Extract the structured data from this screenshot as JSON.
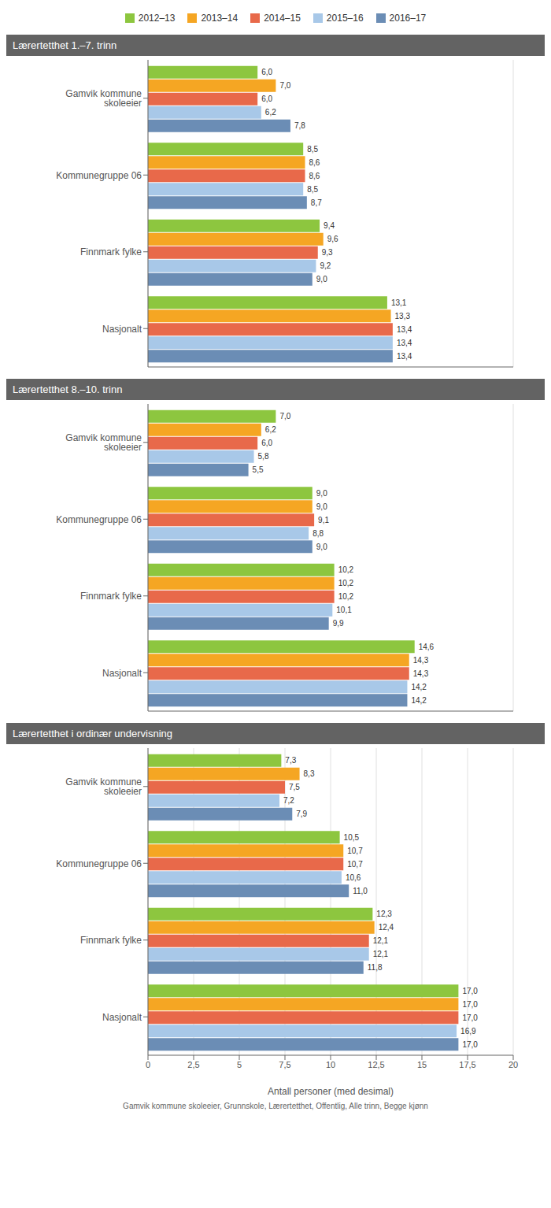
{
  "chart_data": [
    {
      "type": "bar",
      "orientation": "horizontal",
      "title": "Lærertetthet 1.–7. trinn",
      "legend": "top",
      "grid": true,
      "data_labels": true,
      "tick_labels": "y",
      "categories": [
        "Gamvik kommune skoleeier",
        "Kommunegruppe 06",
        "Finnmark fylke",
        "Nasjonalt"
      ],
      "series": [
        {
          "name": "2012–13",
          "color": "#8dc63f",
          "values": [
            6.0,
            8.5,
            9.4,
            13.1
          ],
          "value_labels": [
            "6,0",
            "8,5",
            "9,4",
            "13,1"
          ]
        },
        {
          "name": "2013–14",
          "color": "#f5a623",
          "values": [
            7.0,
            8.6,
            9.6,
            13.3
          ],
          "value_labels": [
            "7,0",
            "8,6",
            "9,6",
            "13,3"
          ]
        },
        {
          "name": "2014–15",
          "color": "#e8694a",
          "values": [
            6.0,
            8.6,
            9.3,
            13.4
          ],
          "value_labels": [
            "6,0",
            "8,6",
            "9,3",
            "13,4"
          ]
        },
        {
          "name": "2015–16",
          "color": "#a8c8e8",
          "values": [
            6.2,
            8.5,
            9.2,
            13.4
          ],
          "value_labels": [
            "6,2",
            "8,5",
            "9,2",
            "13,4"
          ]
        },
        {
          "name": "2016–17",
          "color": "#6b8db5",
          "values": [
            7.8,
            8.7,
            9.0,
            13.4
          ],
          "value_labels": [
            "7,8",
            "8,7",
            "9,0",
            "13,4"
          ]
        }
      ],
      "xlim": [
        0,
        20
      ],
      "xticks": [
        0,
        2.5,
        5,
        7.5,
        10,
        12.5,
        15,
        17.5,
        20
      ]
    },
    {
      "type": "bar",
      "orientation": "horizontal",
      "title": "Lærertetthet 8.–10. trinn",
      "grid": true,
      "data_labels": true,
      "tick_labels": "y",
      "categories": [
        "Gamvik kommune skoleeier",
        "Kommunegruppe 06",
        "Finnmark fylke",
        "Nasjonalt"
      ],
      "series": [
        {
          "name": "2012–13",
          "color": "#8dc63f",
          "values": [
            7.0,
            9.0,
            10.2,
            14.6
          ],
          "value_labels": [
            "7,0",
            "9,0",
            "10,2",
            "14,6"
          ]
        },
        {
          "name": "2013–14",
          "color": "#f5a623",
          "values": [
            6.2,
            9.0,
            10.2,
            14.3
          ],
          "value_labels": [
            "6,2",
            "9,0",
            "10,2",
            "14,3"
          ]
        },
        {
          "name": "2014–15",
          "color": "#e8694a",
          "values": [
            6.0,
            9.1,
            10.2,
            14.3
          ],
          "value_labels": [
            "6,0",
            "9,1",
            "10,2",
            "14,3"
          ]
        },
        {
          "name": "2015–16",
          "color": "#a8c8e8",
          "values": [
            5.8,
            8.8,
            10.1,
            14.2
          ],
          "value_labels": [
            "5,8",
            "8,8",
            "10,1",
            "14,2"
          ]
        },
        {
          "name": "2016–17",
          "color": "#6b8db5",
          "values": [
            5.5,
            9.0,
            9.9,
            14.2
          ],
          "value_labels": [
            "5,5",
            "9,0",
            "9,9",
            "14,2"
          ]
        }
      ],
      "xlim": [
        0,
        20
      ],
      "xticks": [
        0,
        2.5,
        5,
        7.5,
        10,
        12.5,
        15,
        17.5,
        20
      ]
    },
    {
      "type": "bar",
      "orientation": "horizontal",
      "title": "Lærertetthet i ordinær undervisning",
      "grid": true,
      "data_labels": true,
      "x_label": "Antall personer (med desimal)",
      "annotations": [
        "Gamvik kommune skoleeier, Grunnskole, Lærertetthet, Offentlig, Alle trinn, Begge kjønn"
      ],
      "categories": [
        "Gamvik kommune skoleeier",
        "Kommunegruppe 06",
        "Finnmark fylke",
        "Nasjonalt"
      ],
      "series": [
        {
          "name": "2012–13",
          "color": "#8dc63f",
          "values": [
            7.3,
            10.5,
            12.3,
            17.0
          ],
          "value_labels": [
            "7,3",
            "10,5",
            "12,3",
            "17,0"
          ]
        },
        {
          "name": "2013–14",
          "color": "#f5a623",
          "values": [
            8.3,
            10.7,
            12.4,
            17.0
          ],
          "value_labels": [
            "8,3",
            "10,7",
            "12,4",
            "17,0"
          ]
        },
        {
          "name": "2014–15",
          "color": "#e8694a",
          "values": [
            7.5,
            10.7,
            12.1,
            17.0
          ],
          "value_labels": [
            "7,5",
            "10,7",
            "12,1",
            "17,0"
          ]
        },
        {
          "name": "2015–16",
          "color": "#a8c8e8",
          "values": [
            7.2,
            10.6,
            12.1,
            16.9
          ],
          "value_labels": [
            "7,2",
            "10,6",
            "12,1",
            "16,9"
          ]
        },
        {
          "name": "2016–17",
          "color": "#6b8db5",
          "values": [
            7.9,
            11.0,
            11.8,
            17.0
          ],
          "value_labels": [
            "7,9",
            "11,0",
            "11,8",
            "17,0"
          ]
        }
      ],
      "xlim": [
        0,
        20
      ],
      "xticks": [
        0,
        {
          "value": 2.5,
          "label": "2,5"
        },
        5,
        {
          "value": 7.5,
          "label": "7,5"
        },
        10,
        {
          "value": 12.5,
          "label": "12,5"
        },
        15,
        {
          "value": 17.5,
          "label": "17,5"
        },
        20
      ]
    }
  ]
}
